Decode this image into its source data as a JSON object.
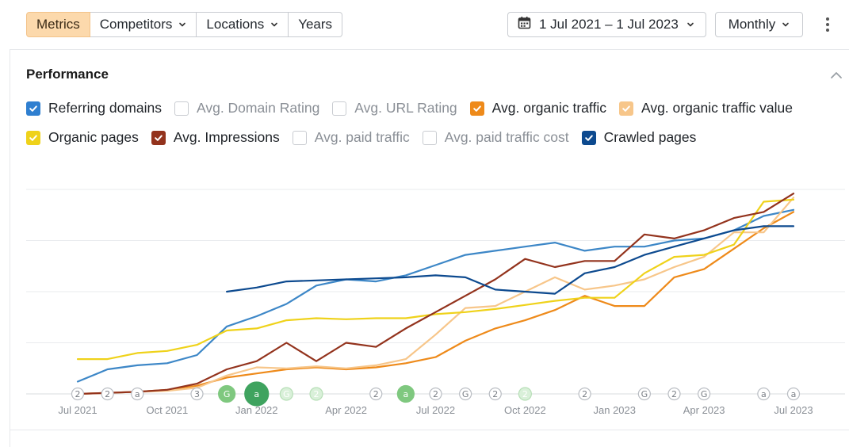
{
  "toolbar": {
    "segments": [
      {
        "label": "Metrics",
        "active": true,
        "dropdown": false
      },
      {
        "label": "Competitors",
        "active": false,
        "dropdown": true
      },
      {
        "label": "Locations",
        "active": false,
        "dropdown": true
      },
      {
        "label": "Years",
        "active": false,
        "dropdown": false
      }
    ],
    "date_range": "1 Jul 2021 – 1 Jul 2023",
    "date_icon": "calendar-icon",
    "interval": "Monthly",
    "more_icon": "kebab-menu-icon"
  },
  "performance": {
    "title": "Performance",
    "collapse_icon": "chevron-up-icon",
    "metrics_row1": [
      {
        "label": "Referring domains",
        "checked": true,
        "color": "#2f7fd0"
      },
      {
        "label": "Avg. Domain Rating",
        "checked": false,
        "color": ""
      },
      {
        "label": "Avg. URL Rating",
        "checked": false,
        "color": ""
      },
      {
        "label": "Avg. organic traffic",
        "checked": true,
        "color": "#ee8a1a"
      },
      {
        "label": "Avg. organic traffic value",
        "checked": true,
        "color": "#f7c68a"
      }
    ],
    "metrics_row2": [
      {
        "label": "Organic pages",
        "checked": true,
        "color": "#efd21a"
      },
      {
        "label": "Avg. Impressions",
        "checked": true,
        "color": "#93331d"
      },
      {
        "label": "Avg. paid traffic",
        "checked": false,
        "color": ""
      },
      {
        "label": "Avg. paid traffic cost",
        "checked": false,
        "color": ""
      },
      {
        "label": "Crawled pages",
        "checked": true,
        "color": "#0d4a8f"
      }
    ]
  },
  "chart_data": {
    "type": "line",
    "x": [
      "Jul 2021",
      "Aug 2021",
      "Sep 2021",
      "Oct 2021",
      "Nov 2021",
      "Dec 2021",
      "Jan 2022",
      "Feb 2022",
      "Mar 2022",
      "Apr 2022",
      "May 2022",
      "Jun 2022",
      "Jul 2022",
      "Aug 2022",
      "Sep 2022",
      "Oct 2022",
      "Nov 2022",
      "Dec 2022",
      "Jan 2023",
      "Feb 2023",
      "Mar 2023",
      "Apr 2023",
      "May 2023",
      "Jun 2023",
      "Jul 2023"
    ],
    "x_tick_labels": [
      "Jul 2021",
      "Oct 2021",
      "Jan 2022",
      "Apr 2022",
      "Jul 2022",
      "Oct 2022",
      "Jan 2023",
      "Apr 2023",
      "Jul 2023"
    ],
    "y_axis_labels_shown": false,
    "ylim": [
      0,
      100
    ],
    "grid": true,
    "series": [
      {
        "name": "Referring domains",
        "color": "#3d87c7",
        "values": [
          6,
          12,
          14,
          15,
          19,
          33,
          38,
          44,
          53,
          56,
          55,
          58,
          63,
          68,
          70,
          72,
          74,
          70,
          72,
          72,
          75,
          76,
          80,
          87,
          90
        ]
      },
      {
        "name": "Avg. organic traffic",
        "color": "#ee8a1a",
        "values": [
          0,
          0.5,
          1,
          2,
          4,
          8,
          10,
          12,
          13,
          12,
          13,
          15,
          18,
          26,
          32,
          36,
          41,
          48,
          43,
          43,
          57,
          61,
          71,
          81,
          89
        ]
      },
      {
        "name": "Avg. organic traffic value",
        "color": "#f7c68a",
        "values": [
          0,
          0.5,
          1,
          1.5,
          3,
          9,
          13,
          12.5,
          13.5,
          12.5,
          14,
          17,
          29,
          42,
          43,
          50,
          57,
          51,
          53,
          56,
          62,
          67,
          79,
          79,
          96
        ]
      },
      {
        "name": "Organic pages",
        "color": "#efd21a",
        "values": [
          17,
          17,
          20,
          21,
          24,
          31,
          32,
          36,
          37,
          36.5,
          37,
          37,
          39,
          40,
          41.5,
          43.5,
          45.5,
          47,
          47,
          59,
          67,
          68,
          73,
          94,
          95
        ]
      },
      {
        "name": "Avg. Impressions",
        "color": "#93331d",
        "values": [
          0,
          0.5,
          1,
          2,
          5,
          12,
          16,
          25,
          16,
          25,
          23,
          32,
          40,
          48,
          56,
          66,
          62,
          65,
          65,
          78,
          76,
          80,
          86,
          89,
          98
        ]
      },
      {
        "name": "Crawled pages",
        "color": "#0d4a8f",
        "values": [
          null,
          null,
          null,
          null,
          null,
          50,
          52,
          55,
          55.5,
          56,
          56.5,
          57,
          58,
          57,
          51,
          50,
          49,
          59,
          62,
          68,
          72,
          76,
          80,
          82,
          82
        ]
      }
    ],
    "annotations": [
      {
        "x": "Jul 2021",
        "label": "2",
        "kind": "grey"
      },
      {
        "x": "Aug 2021",
        "label": "2",
        "kind": "grey"
      },
      {
        "x": "Sep 2021",
        "label": "a",
        "kind": "grey"
      },
      {
        "x": "Nov 2021",
        "label": "3",
        "kind": "grey"
      },
      {
        "x": "Dec 2021",
        "label": "G",
        "kind": "green"
      },
      {
        "x": "Jan 2022",
        "label": "a",
        "kind": "green-large"
      },
      {
        "x": "Feb 2022",
        "label": "G",
        "kind": "green-light"
      },
      {
        "x": "Mar 2022",
        "label": "2",
        "kind": "green-light"
      },
      {
        "x": "May 2022",
        "label": "2",
        "kind": "grey"
      },
      {
        "x": "Jun 2022",
        "label": "a",
        "kind": "green"
      },
      {
        "x": "Jul 2022",
        "label": "2",
        "kind": "grey"
      },
      {
        "x": "Aug 2022",
        "label": "G",
        "kind": "grey"
      },
      {
        "x": "Sep 2022",
        "label": "2",
        "kind": "grey"
      },
      {
        "x": "Oct 2022",
        "label": "2",
        "kind": "green-light"
      },
      {
        "x": "Dec 2022",
        "label": "2",
        "kind": "grey"
      },
      {
        "x": "Feb 2023",
        "label": "G",
        "kind": "grey"
      },
      {
        "x": "Mar 2023",
        "label": "2",
        "kind": "grey"
      },
      {
        "x": "Apr 2023",
        "label": "G",
        "kind": "grey"
      },
      {
        "x": "Jun 2023",
        "label": "a",
        "kind": "grey"
      },
      {
        "x": "Jul 2023",
        "label": "a",
        "kind": "grey"
      }
    ]
  }
}
